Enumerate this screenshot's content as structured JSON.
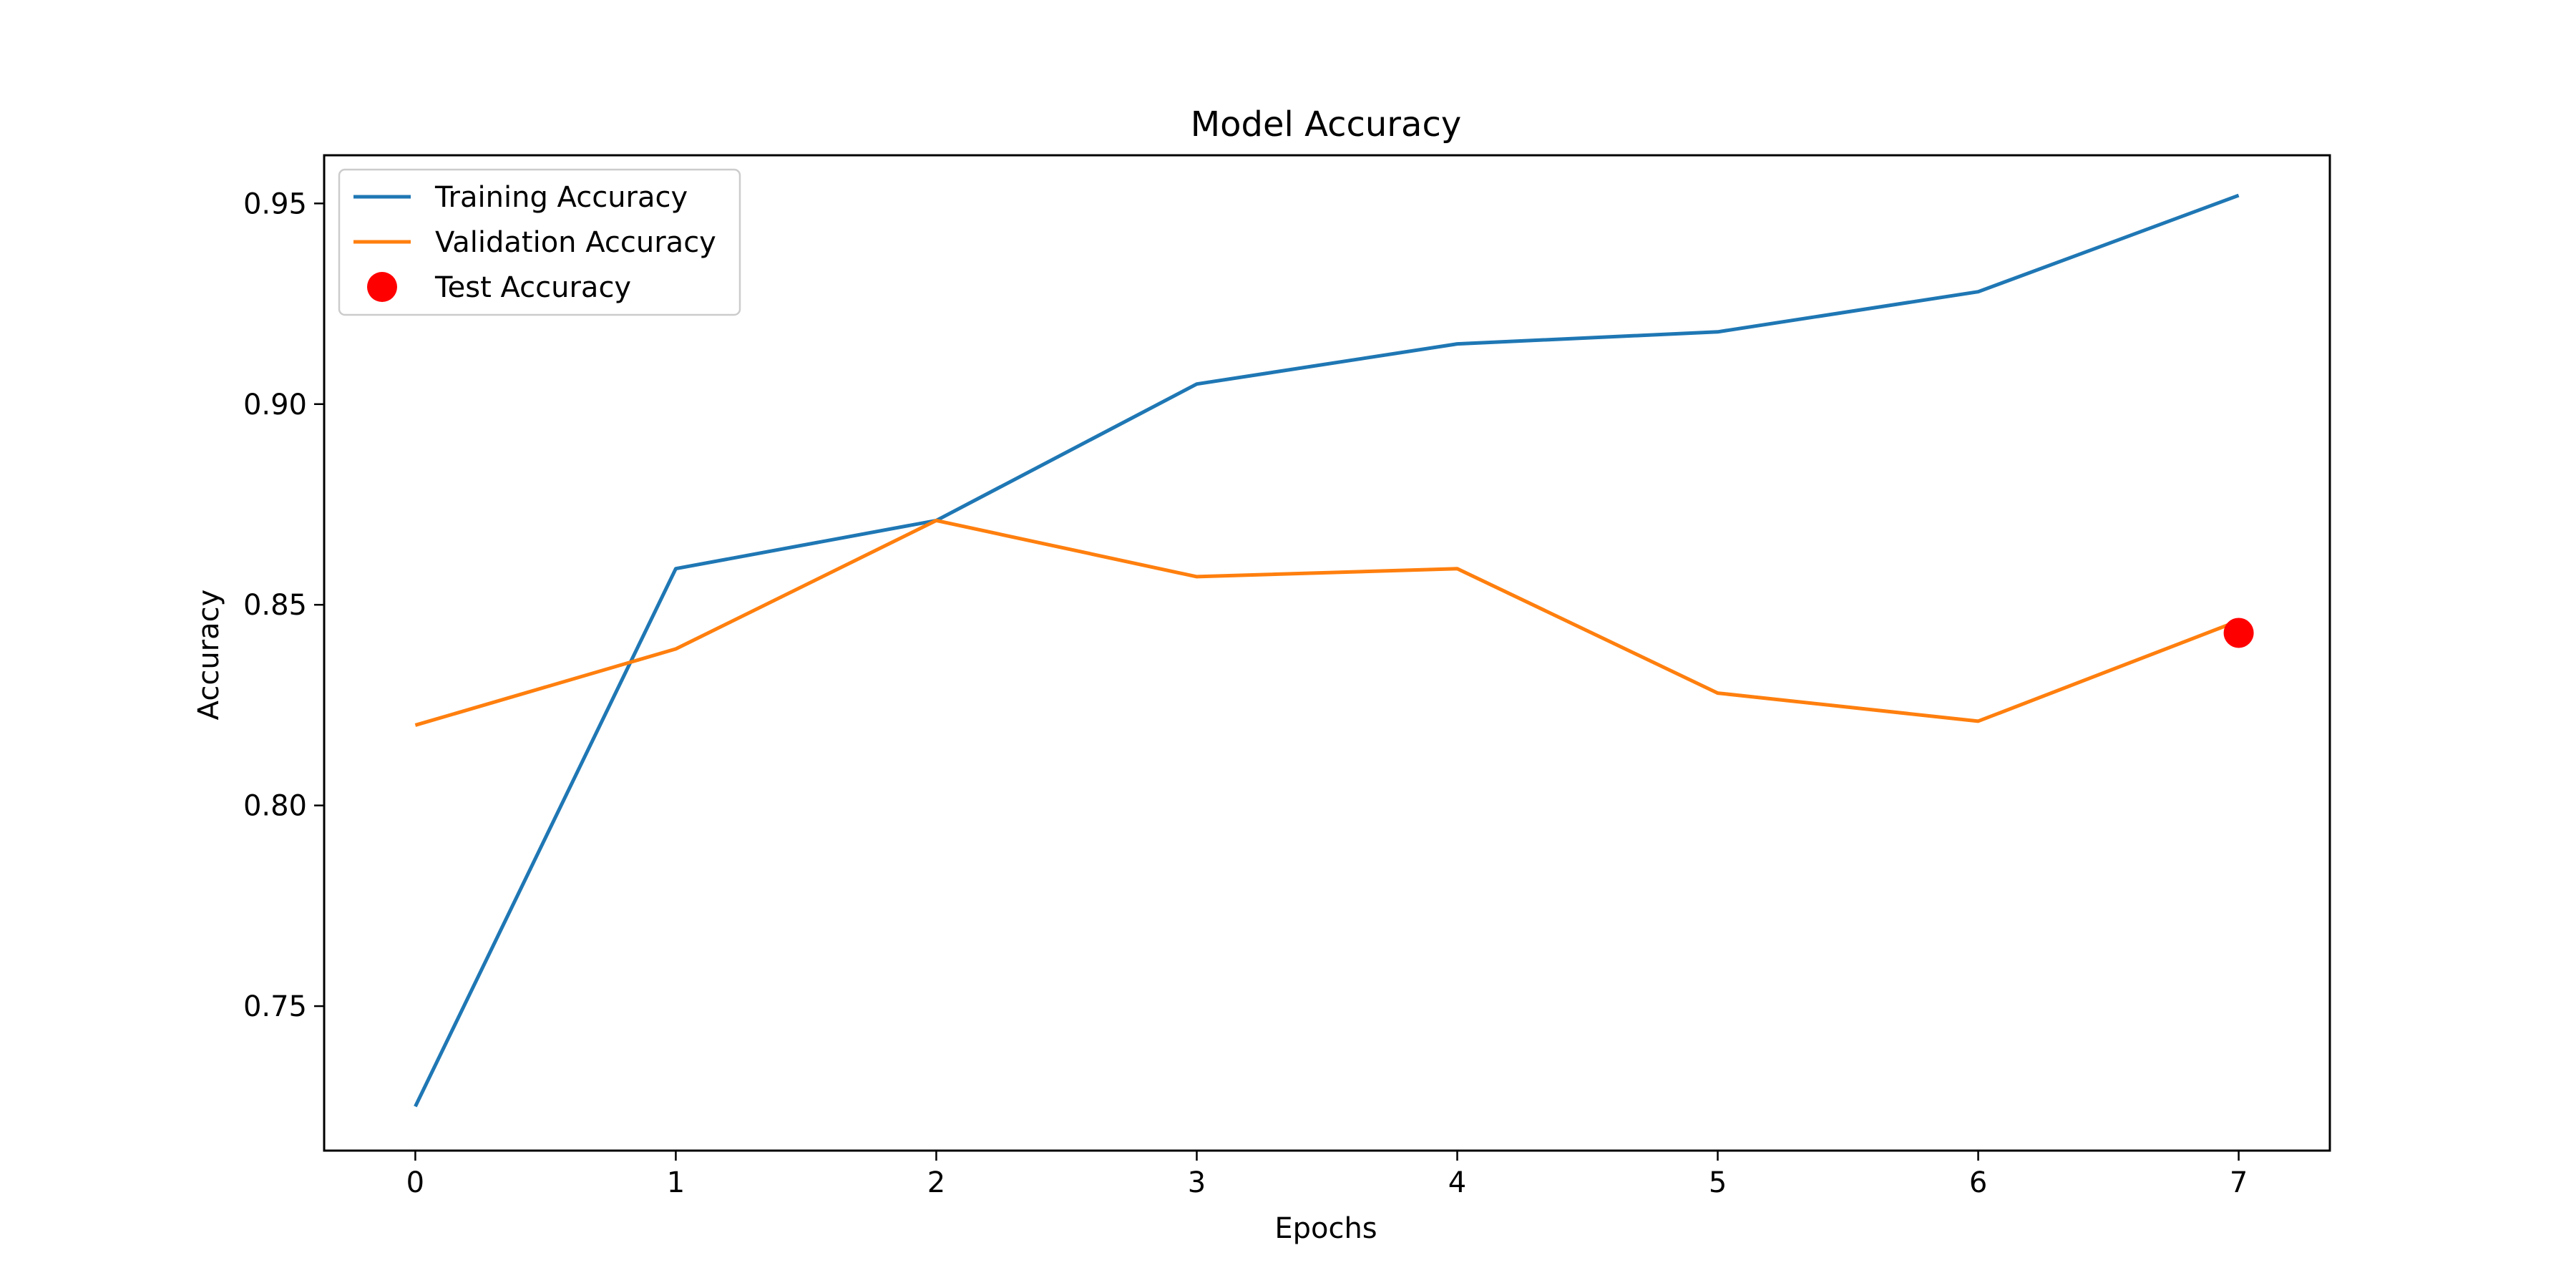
{
  "chart_data": {
    "type": "line",
    "title": "Model Accuracy",
    "xlabel": "Epochs",
    "ylabel": "Accuracy",
    "x": [
      0,
      1,
      2,
      3,
      4,
      5,
      6,
      7
    ],
    "xticks": [
      "0",
      "1",
      "2",
      "3",
      "4",
      "5",
      "6",
      "7"
    ],
    "yticks": [
      "0.75",
      "0.80",
      "0.85",
      "0.90",
      "0.95"
    ],
    "xlim": [
      -0.35,
      7.35
    ],
    "ylim": [
      0.714,
      0.962
    ],
    "grid": false,
    "legend_position": "top-left",
    "series": [
      {
        "name": "Training Accuracy",
        "kind": "line",
        "color": "#1f77b4",
        "values": [
          0.725,
          0.859,
          0.871,
          0.905,
          0.915,
          0.918,
          0.928,
          0.952
        ]
      },
      {
        "name": "Validation Accuracy",
        "kind": "line",
        "color": "#ff7f0e",
        "values": [
          0.82,
          0.839,
          0.871,
          0.857,
          0.859,
          0.828,
          0.821,
          0.846
        ]
      },
      {
        "name": "Test Accuracy",
        "kind": "scatter",
        "color": "#ff0000",
        "points": [
          {
            "x": 7,
            "y": 0.843
          }
        ]
      }
    ]
  }
}
